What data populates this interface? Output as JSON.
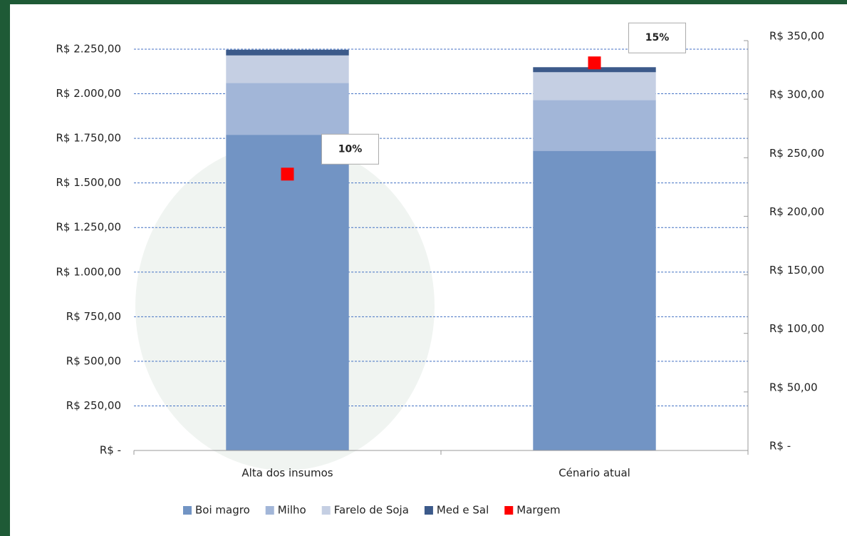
{
  "chart_data": {
    "type": "bar",
    "categories": [
      "Alta dos insumos",
      "Cénario atual"
    ],
    "series": [
      {
        "name": "Boi magro",
        "color": "#7294c4",
        "values": [
          1770,
          1680
        ]
      },
      {
        "name": "Milho",
        "color": "#a2b6d8",
        "values": [
          290,
          285
        ]
      },
      {
        "name": "Farelo de Soja",
        "color": "#c5cfe3",
        "values": [
          155,
          156
        ]
      },
      {
        "name": "Med e Sal",
        "color": "#3c5a8a",
        "values": [
          32,
          28
        ]
      },
      {
        "name": "Margem",
        "color": "#ff0000",
        "axis": "y2",
        "type": "scatter",
        "values": [
          236,
          331
        ],
        "point_labels": [
          "10%",
          "15%"
        ]
      }
    ],
    "stacked": true,
    "ylim": [
      0,
      2250
    ],
    "yticks": [
      {
        "value": 0,
        "label": "R$ -"
      },
      {
        "value": 250,
        "label": "R$ 250,00"
      },
      {
        "value": 500,
        "label": "R$ 500,00"
      },
      {
        "value": 750,
        "label": "R$ 750,00"
      },
      {
        "value": 1000,
        "label": "R$ 1.000,00"
      },
      {
        "value": 1250,
        "label": "R$ 1.250,00"
      },
      {
        "value": 1500,
        "label": "R$ 1.500,00"
      },
      {
        "value": 1750,
        "label": "R$ 1.750,00"
      },
      {
        "value": 2000,
        "label": "R$ 2.000,00"
      },
      {
        "value": 2250,
        "label": "R$ 2.250,00"
      }
    ],
    "y2lim": [
      0,
      350
    ],
    "y2ticks": [
      {
        "value": 0,
        "label": "R$ -"
      },
      {
        "value": 50,
        "label": "R$ 50,00"
      },
      {
        "value": 100,
        "label": "R$ 100,00"
      },
      {
        "value": 150,
        "label": "R$ 150,00"
      },
      {
        "value": 200,
        "label": "R$ 200,00"
      },
      {
        "value": 250,
        "label": "R$ 250,00"
      },
      {
        "value": 300,
        "label": "R$ 300,00"
      },
      {
        "value": 350,
        "label": "R$ 350,00"
      }
    ],
    "grid": true,
    "legend": "bottom"
  }
}
